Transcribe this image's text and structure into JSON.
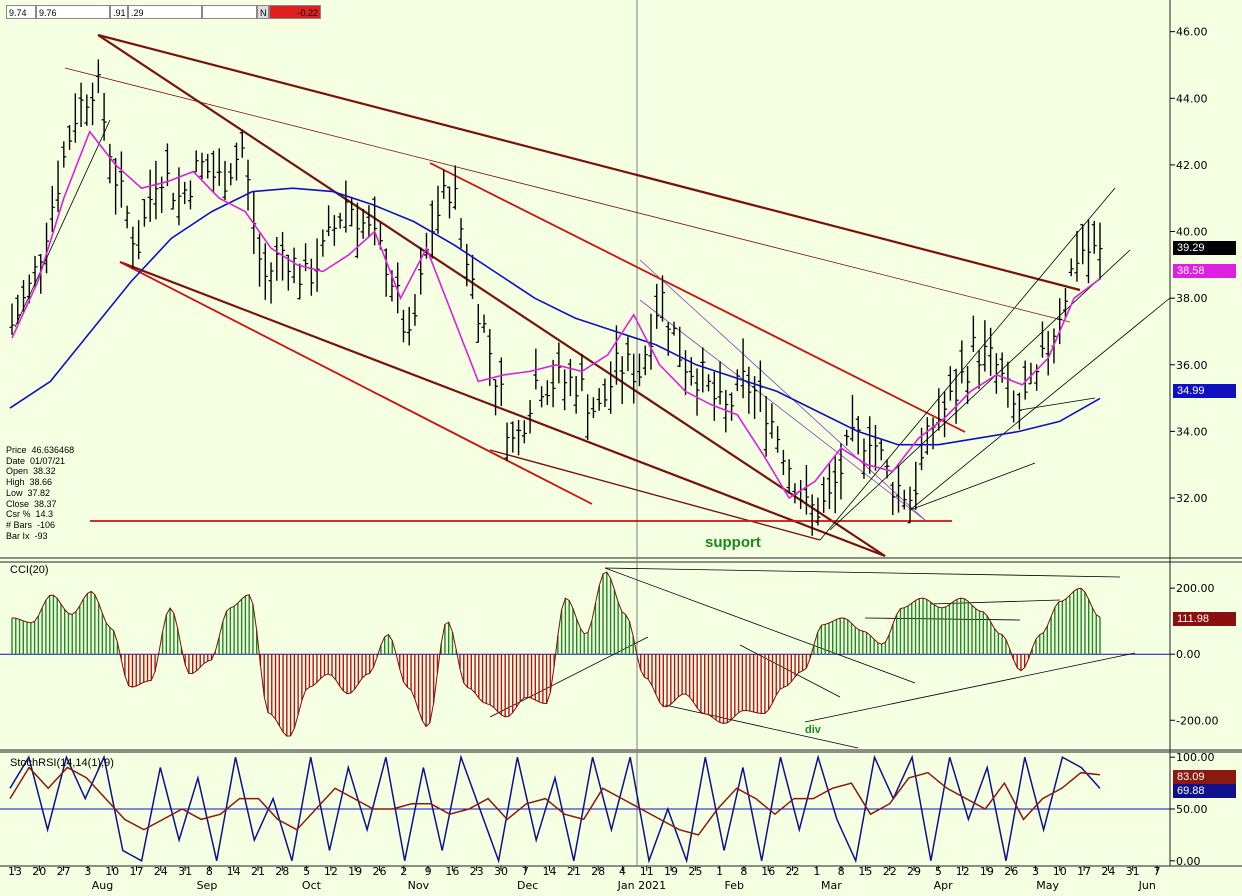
{
  "toolbar": {
    "fields": [
      "9.74",
      "9.76",
      ".91",
      ".29",
      "",
      "N",
      "-0.22"
    ]
  },
  "info_panel": [
    {
      "label": "Price",
      "value": "46.636468"
    },
    {
      "label": "Date",
      "value": "01/07/21"
    },
    {
      "label": "Open",
      "value": "38.32"
    },
    {
      "label": "High",
      "value": "38.66"
    },
    {
      "label": "Low",
      "value": "37.82"
    },
    {
      "label": "Close",
      "value": "38.37"
    },
    {
      "label": "Csr %",
      "value": "14.3"
    },
    {
      "label": "# Bars",
      "value": "-106"
    },
    {
      "label": "Bar Ix",
      "value": "-93"
    }
  ],
  "colors": {
    "background": "#f5ffe2",
    "price_bars": "#000000",
    "ma_fast": "#e020e0",
    "ma_slow": "#1010c0",
    "channel": "#7a1010",
    "support_line": "#d01010",
    "support_text": "#1a8a1a",
    "cci_pos": "#1a8a1a",
    "cci_neg": "#c01010",
    "stoch_k": "#10108a",
    "stoch_d": "#8a1a10"
  },
  "annotations": {
    "support": "support",
    "div": "div"
  },
  "chart_data": [
    {
      "type": "ohlc",
      "panel": "price",
      "y_ticks": [
        "46.00",
        "44.00",
        "42.00",
        "40.00",
        "38.00",
        "36.00",
        "34.00",
        "32.00"
      ],
      "ylim": [
        30.2,
        46.8
      ],
      "last_values": [
        {
          "label": "39.29",
          "value": 39.29,
          "color": "#000000",
          "text_color": "#ffffff"
        },
        {
          "label": "38.58",
          "value": 38.58,
          "color": "#e020e0",
          "text_color": "#ffffff"
        },
        {
          "label": "34.99",
          "value": 34.99,
          "color": "#1010c0",
          "text_color": "#ffffff"
        }
      ],
      "weekly_closes": [
        37.2,
        38.5,
        41.0,
        43.5,
        44.6,
        41.5,
        39.5,
        42.0,
        41.0,
        42.0,
        41.5,
        42.5,
        38.5,
        39.5,
        38.5,
        39.5,
        41.0,
        40.0,
        39.0,
        36.5,
        40.0,
        41.5,
        38.5,
        36.0,
        33.5,
        35.5,
        35.5,
        35.5,
        34.5,
        36.0,
        35.8,
        38.2,
        36.2,
        35.6,
        34.5,
        35.5,
        34.8,
        33.3,
        31.6,
        31.8,
        33.5,
        34.0,
        32.5,
        32.0,
        34.2,
        35.0,
        36.5,
        36.0,
        34.5,
        35.5,
        37.5,
        39.5,
        39.29
      ],
      "ma_fast": [
        36.8,
        38.5,
        41.0,
        43.0,
        42.0,
        41.3,
        41.5,
        41.8,
        41.0,
        40.6,
        39.5,
        39.0,
        38.8,
        39.3,
        40.0,
        38.0,
        39.5,
        37.5,
        35.5,
        35.7,
        35.8,
        36.0,
        35.8,
        36.3,
        37.5,
        36.0,
        35.2,
        34.8,
        34.5,
        33.3,
        32.0,
        32.5,
        33.5,
        33.0,
        32.8,
        33.8,
        34.4,
        35.2,
        35.7,
        35.4,
        36.2,
        38.0,
        38.58
      ],
      "ma_slow": [
        34.7,
        35.5,
        37.0,
        38.5,
        39.8,
        40.6,
        41.2,
        41.3,
        41.2,
        40.8,
        40.3,
        39.6,
        38.8,
        38.0,
        37.4,
        37.0,
        36.6,
        36.0,
        35.6,
        35.2,
        34.6,
        34.0,
        33.6,
        33.6,
        33.8,
        34.0,
        34.3,
        34.99
      ]
    },
    {
      "type": "histogram",
      "panel": "CCI(20)",
      "name": "CCI(20)",
      "y_ticks": [
        "200.00",
        "0.00",
        "-200.00"
      ],
      "ylim": [
        -290,
        270
      ],
      "last_value": {
        "label": "111.98",
        "value": 111.98
      },
      "values": [
        110,
        95,
        180,
        120,
        190,
        80,
        -100,
        -80,
        140,
        -60,
        -20,
        140,
        180,
        -180,
        -250,
        -100,
        -60,
        -120,
        -60,
        60,
        -100,
        -220,
        100,
        -100,
        -150,
        -190,
        -130,
        -150,
        170,
        60,
        250,
        120,
        -70,
        -160,
        -120,
        -180,
        -210,
        -170,
        -180,
        -100,
        -50,
        90,
        110,
        70,
        30,
        140,
        170,
        140,
        170,
        130,
        60,
        -50,
        60,
        160,
        200,
        111.98
      ]
    },
    {
      "type": "line",
      "panel": "StochRSI(14,14(1),9)",
      "name": "StochRSI(14,14(1),9)",
      "y_ticks": [
        "100.00",
        "50.00",
        "0.00"
      ],
      "ylim": [
        -5,
        105
      ],
      "last_values": [
        {
          "label": "83.09",
          "value": 83.09,
          "color": "#8a1a10"
        },
        {
          "label": "69.88",
          "value": 69.88,
          "color": "#10108a"
        }
      ],
      "k_values": [
        70,
        100,
        30,
        100,
        60,
        100,
        10,
        0,
        90,
        20,
        80,
        0,
        100,
        20,
        60,
        0,
        100,
        10,
        90,
        30,
        100,
        0,
        90,
        10,
        100,
        50,
        0,
        100,
        20,
        80,
        0,
        100,
        30,
        100,
        0,
        50,
        0,
        100,
        10,
        90,
        0,
        100,
        30,
        100,
        40,
        0,
        100,
        60,
        100,
        0,
        100,
        40,
        90,
        0,
        100,
        30,
        100,
        90,
        69.88
      ],
      "d_values": [
        60,
        90,
        70,
        90,
        80,
        60,
        40,
        30,
        40,
        50,
        40,
        45,
        60,
        60,
        40,
        30,
        50,
        70,
        60,
        50,
        50,
        55,
        55,
        45,
        50,
        60,
        40,
        55,
        60,
        45,
        40,
        70,
        60,
        50,
        40,
        30,
        25,
        50,
        70,
        60,
        45,
        60,
        60,
        70,
        75,
        45,
        55,
        80,
        85,
        70,
        60,
        50,
        75,
        40,
        60,
        70,
        85,
        83.09
      ]
    }
  ],
  "x_axis": {
    "day_labels": [
      "13",
      "20",
      "27",
      "3",
      "10",
      "17",
      "24",
      "31",
      "8",
      "14",
      "21",
      "28",
      "5",
      "12",
      "19",
      "26",
      "2",
      "9",
      "16",
      "23",
      "30",
      "7",
      "14",
      "21",
      "28",
      "4",
      "11",
      "19",
      "25",
      "1",
      "8",
      "16",
      "22",
      "1",
      "8",
      "15",
      "22",
      "29",
      "5",
      "12",
      "19",
      "26",
      "3",
      "10",
      "17",
      "24",
      "31",
      "7"
    ],
    "month_labels": [
      "Aug",
      "Sep",
      "Oct",
      "Nov",
      "Dec",
      "Jan 2021",
      "Feb",
      "Mar",
      "Apr",
      "May",
      "Jun"
    ]
  }
}
